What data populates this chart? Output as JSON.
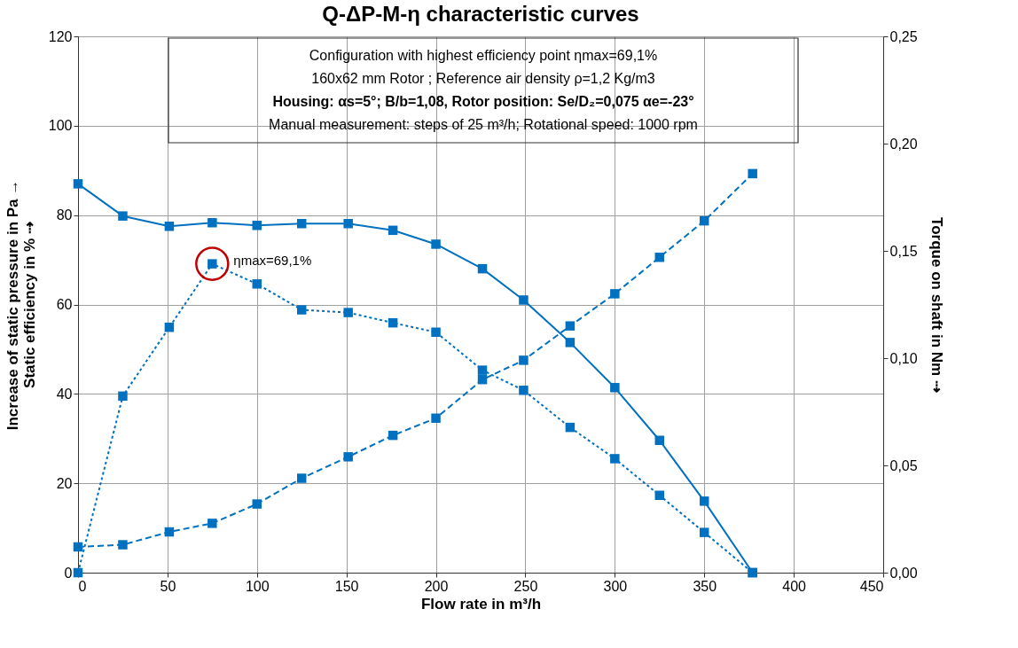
{
  "chart_data": {
    "type": "line",
    "title": "Q-ΔP-M-η characteristic curves",
    "xlabel": "Flow rate in m³/h",
    "ylabel": "Increase of static pressure in Pa →\nStatic efficiency in % ⇢",
    "y2label": "Torque on shaft in Nm ⇢",
    "xlim": [
      0,
      450
    ],
    "xticks": [
      0,
      50,
      100,
      150,
      200,
      250,
      300,
      350,
      400,
      450
    ],
    "ylim": [
      0,
      120
    ],
    "yticks": [
      0,
      20,
      40,
      60,
      80,
      100,
      120
    ],
    "y2lim": [
      0,
      0.25
    ],
    "y2ticks": [
      {
        "value": 0,
        "label": "0,00"
      },
      {
        "value": 0.05,
        "label": "0,05"
      },
      {
        "value": 0.1,
        "label": "0,10"
      },
      {
        "value": 0.15,
        "label": "0,15"
      },
      {
        "value": 0.2,
        "label": "0,20"
      },
      {
        "value": 0.25,
        "label": "0,25"
      }
    ],
    "x": [
      0,
      25,
      51,
      75,
      100,
      125,
      151,
      176,
      200,
      226,
      249,
      275,
      300,
      325,
      350,
      377
    ],
    "series": [
      {
        "color": "#0070c0",
        "line_style": "solid",
        "values": [
          87,
          79.8,
          77.5,
          78.3,
          77.7,
          78.1,
          78.1,
          76.6,
          73.5,
          68,
          61,
          51.5,
          41.4,
          29.6,
          16,
          0
        ]
      },
      {
        "color": "#0070c0",
        "line_style": "dotted",
        "values": [
          0,
          39.5,
          54.9,
          69.1,
          64.6,
          58.8,
          58.2,
          55.9,
          53.8,
          45.3,
          40.8,
          32.5,
          25.5,
          17.3,
          9.0,
          0
        ]
      },
      {
        "color": "#0070c0",
        "line_style": "dashed",
        "axis": "y2",
        "values": [
          0.012,
          0.013,
          0.019,
          0.023,
          0.032,
          0.044,
          0.054,
          0.064,
          0.072,
          0.09,
          0.099,
          0.115,
          0.13,
          0.147,
          0.164,
          0.186
        ]
      }
    ],
    "marker": "square",
    "grid": true,
    "legend": false,
    "annotations": [
      "Configuration with highest efficiency point  ηmax=69,1%",
      "160x62 mm Rotor ; Reference air density ρ=1,2 Kg/m3",
      "Housing: αs=5°; B/b=1,08, Rotor position: Se/D₂=0,075 αe=-23°",
      "Manual measurement: steps of 25 m³/h; Rotational speed: 1000 rpm",
      {
        "text": "ηmax=69,1%",
        "x": 75,
        "y": 69.1
      }
    ]
  }
}
